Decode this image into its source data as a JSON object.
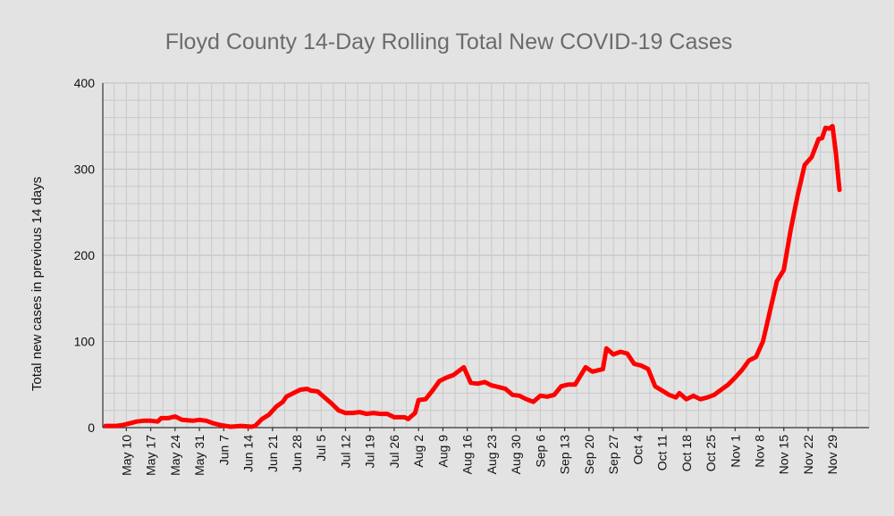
{
  "chart_data": {
    "type": "line",
    "title": "Floyd County 14-Day Rolling Total New COVID-19 Cases",
    "xlabel": "",
    "ylabel": "Total new cases in previous 14 days",
    "ylim": [
      0,
      400
    ],
    "y_ticks": [
      0,
      100,
      200,
      300,
      400
    ],
    "x_range": [
      "2020-05-04",
      "2020-12-01"
    ],
    "x_ticks": [
      "May 10",
      "May 17",
      "May 24",
      "May 31",
      "Jun 7",
      "Jun 14",
      "Jun 21",
      "Jun 28",
      "Jul 5",
      "Jul 12",
      "Jul 19",
      "Jul 26",
      "Aug 2",
      "Aug 9",
      "Aug 16",
      "Aug 23",
      "Aug 30",
      "Sep 6",
      "Sep 13",
      "Sep 20",
      "Sep 27",
      "Oct 4",
      "Oct 11",
      "Oct 18",
      "Oct 25",
      "Nov 1",
      "Nov 8",
      "Nov 15",
      "Nov 22",
      "Nov 29"
    ],
    "x_tick_dates": [
      "2020-05-10",
      "2020-05-17",
      "2020-05-24",
      "2020-05-31",
      "2020-06-07",
      "2020-06-14",
      "2020-06-21",
      "2020-06-28",
      "2020-07-05",
      "2020-07-12",
      "2020-07-19",
      "2020-07-26",
      "2020-08-02",
      "2020-08-09",
      "2020-08-16",
      "2020-08-23",
      "2020-08-30",
      "2020-09-06",
      "2020-09-13",
      "2020-09-20",
      "2020-09-27",
      "2020-10-04",
      "2020-10-11",
      "2020-10-18",
      "2020-10-25",
      "2020-11-01",
      "2020-11-08",
      "2020-11-15",
      "2020-11-22",
      "2020-11-29"
    ],
    "grid": true,
    "color": "#ff0000",
    "series": [
      {
        "points": [
          [
            "2020-05-04",
            2
          ],
          [
            "2020-05-07",
            2
          ],
          [
            "2020-05-09",
            3
          ],
          [
            "2020-05-11",
            5
          ],
          [
            "2020-05-13",
            7
          ],
          [
            "2020-05-15",
            8
          ],
          [
            "2020-05-17",
            8
          ],
          [
            "2020-05-19",
            7
          ],
          [
            "2020-05-20",
            11
          ],
          [
            "2020-05-22",
            11
          ],
          [
            "2020-05-24",
            13
          ],
          [
            "2020-05-26",
            9
          ],
          [
            "2020-05-29",
            8
          ],
          [
            "2020-05-31",
            9
          ],
          [
            "2020-06-02",
            8
          ],
          [
            "2020-06-04",
            5
          ],
          [
            "2020-06-06",
            3
          ],
          [
            "2020-06-09",
            1
          ],
          [
            "2020-06-12",
            2
          ],
          [
            "2020-06-15",
            1
          ],
          [
            "2020-06-16",
            2
          ],
          [
            "2020-06-18",
            10
          ],
          [
            "2020-06-20",
            15
          ],
          [
            "2020-06-22",
            24
          ],
          [
            "2020-06-24",
            30
          ],
          [
            "2020-06-25",
            36
          ],
          [
            "2020-06-27",
            40
          ],
          [
            "2020-06-29",
            44
          ],
          [
            "2020-07-01",
            45
          ],
          [
            "2020-07-02",
            43
          ],
          [
            "2020-07-04",
            42
          ],
          [
            "2020-07-06",
            35
          ],
          [
            "2020-07-08",
            28
          ],
          [
            "2020-07-10",
            20
          ],
          [
            "2020-07-12",
            17
          ],
          [
            "2020-07-14",
            17
          ],
          [
            "2020-07-16",
            18
          ],
          [
            "2020-07-18",
            16
          ],
          [
            "2020-07-20",
            17
          ],
          [
            "2020-07-22",
            16
          ],
          [
            "2020-07-24",
            16
          ],
          [
            "2020-07-26",
            12
          ],
          [
            "2020-07-29",
            12
          ],
          [
            "2020-07-30",
            10
          ],
          [
            "2020-08-01",
            17
          ],
          [
            "2020-08-02",
            32
          ],
          [
            "2020-08-04",
            33
          ],
          [
            "2020-08-06",
            43
          ],
          [
            "2020-08-08",
            54
          ],
          [
            "2020-08-10",
            58
          ],
          [
            "2020-08-12",
            61
          ],
          [
            "2020-08-14",
            67
          ],
          [
            "2020-08-15",
            70
          ],
          [
            "2020-08-17",
            52
          ],
          [
            "2020-08-19",
            51
          ],
          [
            "2020-08-21",
            53
          ],
          [
            "2020-08-23",
            49
          ],
          [
            "2020-08-25",
            47
          ],
          [
            "2020-08-27",
            45
          ],
          [
            "2020-08-29",
            38
          ],
          [
            "2020-08-31",
            37
          ],
          [
            "2020-09-02",
            33
          ],
          [
            "2020-09-04",
            30
          ],
          [
            "2020-09-06",
            37
          ],
          [
            "2020-09-08",
            36
          ],
          [
            "2020-09-10",
            38
          ],
          [
            "2020-09-12",
            48
          ],
          [
            "2020-09-14",
            50
          ],
          [
            "2020-09-16",
            50
          ],
          [
            "2020-09-19",
            70
          ],
          [
            "2020-09-21",
            65
          ],
          [
            "2020-09-24",
            68
          ],
          [
            "2020-09-25",
            92
          ],
          [
            "2020-09-27",
            85
          ],
          [
            "2020-09-29",
            88
          ],
          [
            "2020-10-01",
            86
          ],
          [
            "2020-10-03",
            74
          ],
          [
            "2020-10-05",
            72
          ],
          [
            "2020-10-07",
            68
          ],
          [
            "2020-10-09",
            48
          ],
          [
            "2020-10-11",
            43
          ],
          [
            "2020-10-13",
            38
          ],
          [
            "2020-10-15",
            35
          ],
          [
            "2020-10-16",
            40
          ],
          [
            "2020-10-18",
            33
          ],
          [
            "2020-10-20",
            37
          ],
          [
            "2020-10-22",
            33
          ],
          [
            "2020-10-24",
            35
          ],
          [
            "2020-10-26",
            38
          ],
          [
            "2020-10-28",
            44
          ],
          [
            "2020-10-30",
            50
          ],
          [
            "2020-11-01",
            58
          ],
          [
            "2020-11-03",
            67
          ],
          [
            "2020-11-05",
            78
          ],
          [
            "2020-11-07",
            82
          ],
          [
            "2020-11-09",
            100
          ],
          [
            "2020-11-11",
            135
          ],
          [
            "2020-11-13",
            170
          ],
          [
            "2020-11-15",
            183
          ],
          [
            "2020-11-17",
            230
          ],
          [
            "2020-11-19",
            270
          ],
          [
            "2020-11-21",
            305
          ],
          [
            "2020-11-23",
            314
          ],
          [
            "2020-11-25",
            335
          ],
          [
            "2020-11-26",
            336
          ],
          [
            "2020-11-27",
            348
          ],
          [
            "2020-11-28",
            347
          ],
          [
            "2020-11-29",
            350
          ],
          [
            "2020-11-30",
            318
          ],
          [
            "2020-12-01",
            276
          ]
        ]
      }
    ]
  }
}
